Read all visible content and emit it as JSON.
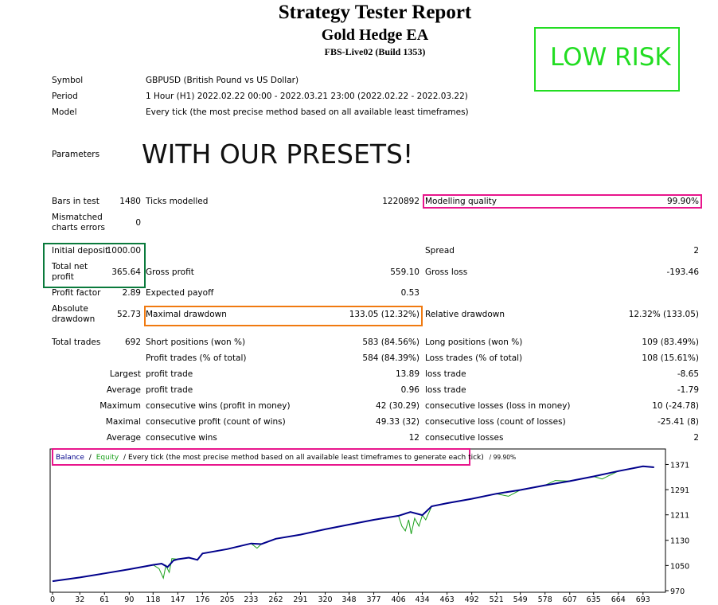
{
  "header": {
    "title": "Strategy Tester Report",
    "ea_name": "Gold Hedge EA",
    "build": "FBS-Live02 (Build 1353)",
    "badge": "LOW RISK",
    "badge_color": "#22dd22"
  },
  "info": {
    "symbol_label": "Symbol",
    "symbol_value": "GBPUSD (British Pound vs US Dollar)",
    "period_label": "Period",
    "period_value": "1 Hour (H1) 2022.02.22 00:00 - 2022.03.21 23:00 (2022.02.22 - 2022.03.22)",
    "model_label": "Model",
    "model_value": "Every tick (the most precise method based on all available least timeframes)",
    "parameters_label": "Parameters",
    "parameters_overlay": "WITH OUR PRESETS!"
  },
  "stats": {
    "bars_label": "Bars in test",
    "bars_value": "1480",
    "ticks_label": "Ticks modelled",
    "ticks_value": "1220892",
    "quality_label": "Modelling quality",
    "quality_value": "99.90%",
    "mismatch_label_1": "Mismatched",
    "mismatch_label_2": "charts errors",
    "mismatch_value": "0",
    "deposit_label": "Initial deposit",
    "deposit_value": "1000.00",
    "spread_label": "Spread",
    "spread_value": "2",
    "net_label_1": "Total net",
    "net_label_2": "profit",
    "net_value": "365.64",
    "gross_profit_label": "Gross profit",
    "gross_profit_value": "559.10",
    "gross_loss_label": "Gross loss",
    "gross_loss_value": "-193.46",
    "pf_label": "Profit factor",
    "pf_value": "2.89",
    "ep_label": "Expected payoff",
    "ep_value": "0.53",
    "abs_dd_label_1": "Absolute",
    "abs_dd_label_2": "drawdown",
    "abs_dd_value": "52.73",
    "max_dd_label": "Maximal drawdown",
    "max_dd_value": "133.05 (12.32%)",
    "rel_dd_label": "Relative drawdown",
    "rel_dd_value": "12.32% (133.05)",
    "trades_label": "Total trades",
    "trades_value": "692",
    "short_label": "Short positions (won %)",
    "short_value": "583 (84.56%)",
    "long_label": "Long positions (won %)",
    "long_value": "109 (83.49%)",
    "pt_label": "Profit trades (% of total)",
    "pt_value": "584 (84.39%)",
    "lt_label": "Loss trades (% of total)",
    "lt_value": "108 (15.61%)",
    "largest_label": "Largest",
    "largest_profit_label": "profit trade",
    "largest_profit_value": "13.89",
    "largest_loss_label": "loss trade",
    "largest_loss_value": "-8.65",
    "average_label": "Average",
    "average_profit_label": "profit trade",
    "average_profit_value": "0.96",
    "average_loss_label": "loss trade",
    "average_loss_value": "-1.79",
    "maximum_label": "Maximum",
    "max_wins_label": "consecutive wins (profit in money)",
    "max_wins_value": "42 (30.29)",
    "max_losses_label": "consecutive losses (loss in money)",
    "max_losses_value": "10 (-24.78)",
    "maximal_label": "Maximal",
    "maximal_profit_label": "consecutive profit (count of wins)",
    "maximal_profit_value": "49.33 (32)",
    "maximal_loss_label": "consecutive loss (count of losses)",
    "maximal_loss_value": "-25.41 (8)",
    "avg2_label": "Average",
    "avg_wins_label": "consecutive wins",
    "avg_wins_value": "12",
    "avg_losses_label": "consecutive losses",
    "avg_losses_value": "2"
  },
  "highlight_colors": {
    "magenta": "#e8168c",
    "green": "#0a7a3c",
    "orange": "#f07a10"
  },
  "chart_legend": {
    "balance": "Balance",
    "sep": "/",
    "equity": "Equity",
    "rest": "/ Every tick (the most precise method based on all available least timeframes to generate each tick)",
    "quality": "/ 99.90%",
    "balance_color": "#00008b",
    "equity_color": "#1aa01a"
  },
  "chart_data": {
    "type": "line",
    "x_ticks": [
      "0",
      "32",
      "61",
      "90",
      "118",
      "147",
      "176",
      "205",
      "233",
      "262",
      "291",
      "320",
      "348",
      "377",
      "406",
      "434",
      "463",
      "492",
      "521",
      "549",
      "578",
      "607",
      "635",
      "664",
      "693"
    ],
    "y_ticks": [
      "1371",
      "1291",
      "1211",
      "1130",
      "1050",
      "970"
    ],
    "ylim": [
      970,
      1400
    ],
    "xlim": [
      0,
      710
    ],
    "series": [
      {
        "name": "Balance",
        "color": "#00008b",
        "points": [
          [
            0,
            1000
          ],
          [
            32,
            1012
          ],
          [
            61,
            1025
          ],
          [
            90,
            1038
          ],
          [
            118,
            1052
          ],
          [
            128,
            1056
          ],
          [
            135,
            1045
          ],
          [
            142,
            1066
          ],
          [
            147,
            1070
          ],
          [
            160,
            1075
          ],
          [
            170,
            1068
          ],
          [
            176,
            1088
          ],
          [
            205,
            1102
          ],
          [
            233,
            1120
          ],
          [
            245,
            1118
          ],
          [
            262,
            1135
          ],
          [
            291,
            1148
          ],
          [
            320,
            1165
          ],
          [
            348,
            1180
          ],
          [
            377,
            1195
          ],
          [
            406,
            1208
          ],
          [
            420,
            1220
          ],
          [
            434,
            1210
          ],
          [
            445,
            1238
          ],
          [
            463,
            1248
          ],
          [
            492,
            1262
          ],
          [
            521,
            1278
          ],
          [
            549,
            1290
          ],
          [
            578,
            1305
          ],
          [
            607,
            1318
          ],
          [
            635,
            1333
          ],
          [
            664,
            1350
          ],
          [
            693,
            1365
          ],
          [
            706,
            1362
          ]
        ]
      },
      {
        "name": "Equity",
        "color": "#1aa01a",
        "points": [
          [
            0,
            1000
          ],
          [
            32,
            1012
          ],
          [
            61,
            1025
          ],
          [
            90,
            1038
          ],
          [
            118,
            1052
          ],
          [
            125,
            1040
          ],
          [
            130,
            1010
          ],
          [
            133,
            1050
          ],
          [
            137,
            1028
          ],
          [
            140,
            1072
          ],
          [
            147,
            1070
          ],
          [
            160,
            1075
          ],
          [
            170,
            1068
          ],
          [
            176,
            1088
          ],
          [
            205,
            1102
          ],
          [
            233,
            1120
          ],
          [
            240,
            1105
          ],
          [
            245,
            1118
          ],
          [
            262,
            1135
          ],
          [
            291,
            1148
          ],
          [
            320,
            1165
          ],
          [
            348,
            1180
          ],
          [
            377,
            1195
          ],
          [
            406,
            1208
          ],
          [
            410,
            1175
          ],
          [
            414,
            1160
          ],
          [
            418,
            1195
          ],
          [
            421,
            1150
          ],
          [
            425,
            1200
          ],
          [
            430,
            1175
          ],
          [
            434,
            1210
          ],
          [
            438,
            1195
          ],
          [
            445,
            1238
          ],
          [
            463,
            1248
          ],
          [
            492,
            1262
          ],
          [
            521,
            1278
          ],
          [
            535,
            1270
          ],
          [
            549,
            1290
          ],
          [
            578,
            1305
          ],
          [
            590,
            1320
          ],
          [
            607,
            1318
          ],
          [
            635,
            1333
          ],
          [
            645,
            1325
          ],
          [
            664,
            1350
          ],
          [
            693,
            1365
          ],
          [
            706,
            1362
          ]
        ]
      }
    ]
  }
}
